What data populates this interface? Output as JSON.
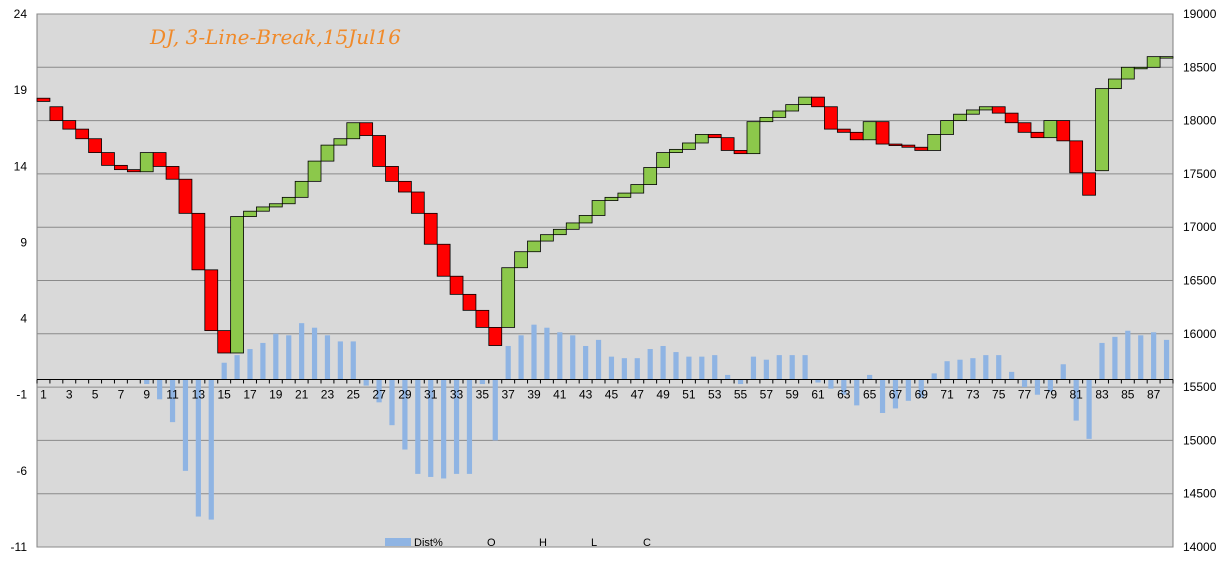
{
  "chart_data": {
    "type": "bar",
    "title": "DJ, 3-Line-Break,15Jul16",
    "left_axis": {
      "min": -11,
      "max": 24,
      "ticks": [
        24,
        19,
        14,
        9,
        4,
        -1,
        -6,
        -11
      ]
    },
    "right_axis": {
      "min": 14000,
      "max": 19000,
      "ticks": [
        19000,
        18500,
        18000,
        17500,
        17000,
        16500,
        16000,
        15500,
        15000,
        14500,
        14000
      ]
    },
    "x_ticks": [
      "1",
      "3",
      "5",
      "7",
      "9",
      "11",
      "13",
      "15",
      "17",
      "19",
      "21",
      "23",
      "25",
      "27",
      "29",
      "31",
      "33",
      "35",
      "37",
      "39",
      "41",
      "43",
      "45",
      "47",
      "49",
      "51",
      "53",
      "55",
      "57",
      "59",
      "61",
      "63",
      "65",
      "67",
      "69",
      "71",
      "73",
      "75",
      "77",
      "79",
      "81",
      "83",
      "85",
      "87"
    ],
    "grid": true,
    "legend": {
      "placement": "bottom",
      "entries": [
        "Dist%",
        "O",
        "H",
        "L",
        "C"
      ]
    },
    "colors": {
      "up": "#8cc84b",
      "down": "#ff0000",
      "dist": "#8fb4e3",
      "plot_bg": "#d9d9d9",
      "title": "#f08a2a"
    },
    "series": [
      {
        "name": "Dist%",
        "values": [
          0,
          0,
          0,
          0,
          0,
          0,
          0,
          0,
          -0.3,
          -1.3,
          -2.8,
          -6,
          -9,
          -9.2,
          1.1,
          1.6,
          2,
          2.4,
          3,
          2.9,
          3.7,
          3.4,
          2.9,
          2.5,
          2.5,
          -0.4,
          -1.5,
          -3,
          -4.6,
          -6.2,
          -6.4,
          -6.5,
          -6.2,
          -6.2,
          -0.3,
          -4,
          2.2,
          2.9,
          3.6,
          3.4,
          3.1,
          2.9,
          2.2,
          2.6,
          1.5,
          1.4,
          1.4,
          2,
          2.2,
          1.8,
          1.5,
          1.5,
          1.6,
          0.3,
          -0.3,
          1.5,
          1.3,
          1.6,
          1.6,
          1.6,
          -0.2,
          -0.6,
          -1,
          -1.7,
          0.3,
          -2.2,
          -1.9,
          -1.4,
          -1.2,
          0.4,
          1.2,
          1.3,
          1.4,
          1.6,
          1.6,
          0.5,
          -0.5,
          -1,
          -0.8,
          1,
          -2.7,
          -3.9,
          2.4,
          2.8,
          3.2,
          2.9,
          3.1,
          2.6
        ]
      },
      {
        "name": "O",
        "values": [
          18210,
          18130,
          18000,
          17920,
          17830,
          17700,
          17580,
          17540,
          17520,
          17700,
          17570,
          17450,
          17130,
          16600,
          16030,
          15820,
          17100,
          17150,
          17190,
          17220,
          17280,
          17430,
          17620,
          17770,
          17830,
          17980,
          17860,
          17570,
          17430,
          17330,
          17130,
          16840,
          16540,
          16370,
          16220,
          16060,
          16060,
          16620,
          16770,
          16870,
          16930,
          16980,
          17040,
          17110,
          17250,
          17280,
          17320,
          17400,
          17560,
          17700,
          17730,
          17790,
          17870,
          17840,
          17720,
          17690,
          17990,
          18030,
          18090,
          18150,
          18220,
          18130,
          17920,
          17890,
          17820,
          17990,
          17780,
          17770,
          17750,
          17720,
          17870,
          18000,
          18060,
          18100,
          18130,
          18070,
          17980,
          17890,
          17840,
          18000,
          17810,
          17510,
          17530,
          18300,
          18390,
          18500,
          18500,
          18600
        ]
      },
      {
        "name": "C",
        "values": [
          18180,
          18000,
          17920,
          17830,
          17700,
          17580,
          17540,
          17520,
          17700,
          17570,
          17450,
          17130,
          16600,
          16030,
          15820,
          17100,
          17150,
          17190,
          17220,
          17280,
          17430,
          17620,
          17770,
          17830,
          17980,
          17860,
          17570,
          17430,
          17330,
          17130,
          16840,
          16540,
          16370,
          16220,
          16060,
          15890,
          16620,
          16770,
          16870,
          16930,
          16980,
          17040,
          17110,
          17250,
          17280,
          17320,
          17400,
          17560,
          17700,
          17730,
          17790,
          17870,
          17840,
          17720,
          17690,
          17990,
          18030,
          18090,
          18150,
          18220,
          18130,
          17920,
          17890,
          17820,
          17990,
          17780,
          17770,
          17750,
          17720,
          17870,
          18000,
          18060,
          18100,
          18130,
          18070,
          17980,
          17890,
          17840,
          18000,
          17810,
          17510,
          17300,
          18300,
          18390,
          18500,
          18500,
          18600,
          18600
        ]
      }
    ]
  }
}
